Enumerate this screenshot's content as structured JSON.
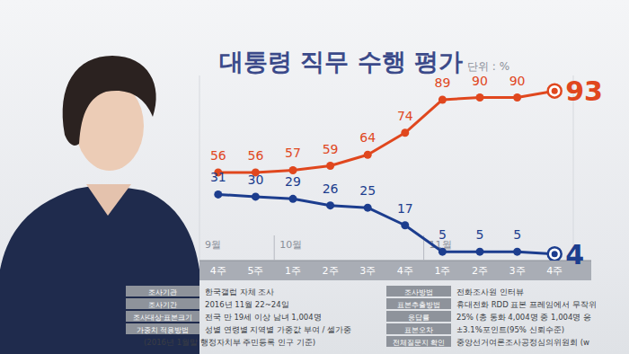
{
  "chart_data": {
    "type": "line",
    "title": "대통령 직무 수행 평가",
    "unit_label": "단위 : %",
    "categories": [
      "4주",
      "5주",
      "1주",
      "2주",
      "3주",
      "4주",
      "1주",
      "2주",
      "3주",
      "4주"
    ],
    "months": [
      "9월",
      null,
      "10월",
      null,
      null,
      null,
      "11월",
      null,
      null,
      null
    ],
    "series": [
      {
        "color": "#e0471e",
        "marker": "circle",
        "values": [
          56,
          56,
          57,
          59,
          64,
          74,
          89,
          90,
          90,
          93
        ]
      },
      {
        "color": "#1c3d8e",
        "marker": "circle",
        "axis": "y2",
        "values": [
          31,
          30,
          29,
          26,
          25,
          17,
          5,
          5,
          5,
          4
        ]
      }
    ],
    "ylim": [
      16,
      100
    ],
    "y2lim": [
      1,
      85
    ],
    "tick_labels": "x",
    "data_labels": true,
    "grid": false
  },
  "survey_info": {
    "left": [
      {
        "label": "조사기관",
        "lines": [
          "한국갤럽 자체 조사"
        ]
      },
      {
        "label": "조사기간",
        "lines": [
          "2016년 11월 22~24일"
        ]
      },
      {
        "label": "조사대상·표본크기",
        "lines": [
          "전국 만 19세 이상 남녀 1,004명"
        ]
      },
      {
        "label": "가중치 적용방법",
        "lines": [
          "성별 연령별 지역별 가중값 부여 / 셀가중",
          "(2016년 1월말 행정자치부 주민등록 인구 기준)"
        ]
      }
    ],
    "right": [
      {
        "label": "조사방법",
        "lines": [
          "전화조사원 인터뷰"
        ]
      },
      {
        "label": "표본추출방법",
        "lines": [
          "휴대전화 RDD 표본 프레임에서 무작위"
        ]
      },
      {
        "label": "응답률",
        "lines": [
          "25% (총 통화 4,004명 중 1,004명 응"
        ]
      },
      {
        "label": "표본오차",
        "lines": [
          "±3.1%포인트(95% 신뢰수준)"
        ]
      },
      {
        "label": "전체질문지 확인",
        "lines": [
          "중앙선거여론조사공정심의위원회 (w"
        ]
      }
    ]
  }
}
